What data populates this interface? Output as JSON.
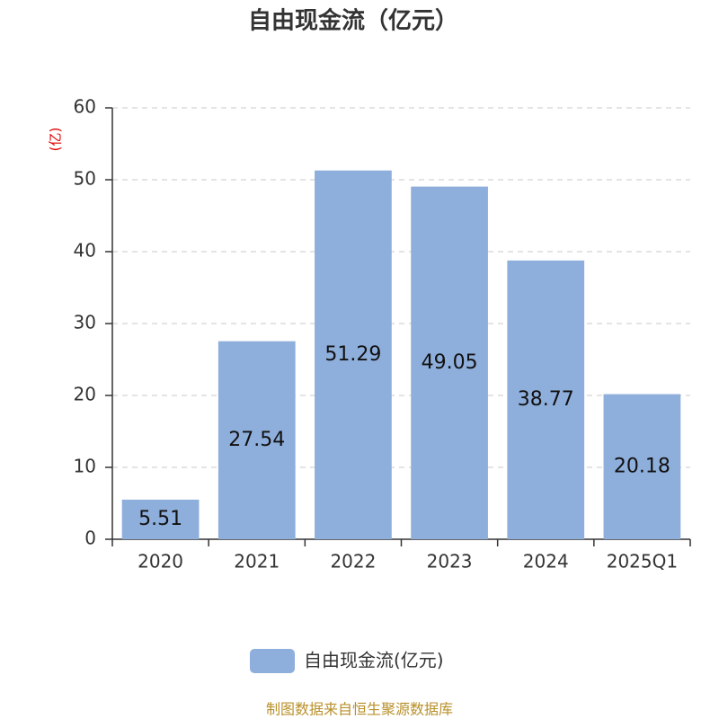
{
  "chart_data": {
    "type": "bar",
    "title": "自由现金流（亿元）",
    "y_unit": "(亿)",
    "categories": [
      "2020",
      "2021",
      "2022",
      "2023",
      "2024",
      "2025Q1"
    ],
    "series": [
      {
        "name": "自由现金流(亿元)",
        "color": "#8eaedb",
        "values": [
          5.51,
          27.54,
          51.29,
          49.05,
          38.77,
          20.18
        ]
      }
    ],
    "ylim": [
      0,
      60
    ],
    "yticks": [
      0,
      10,
      20,
      30,
      40,
      50,
      60
    ],
    "grid": true,
    "source": "制图数据来自恒生聚源数据库"
  }
}
